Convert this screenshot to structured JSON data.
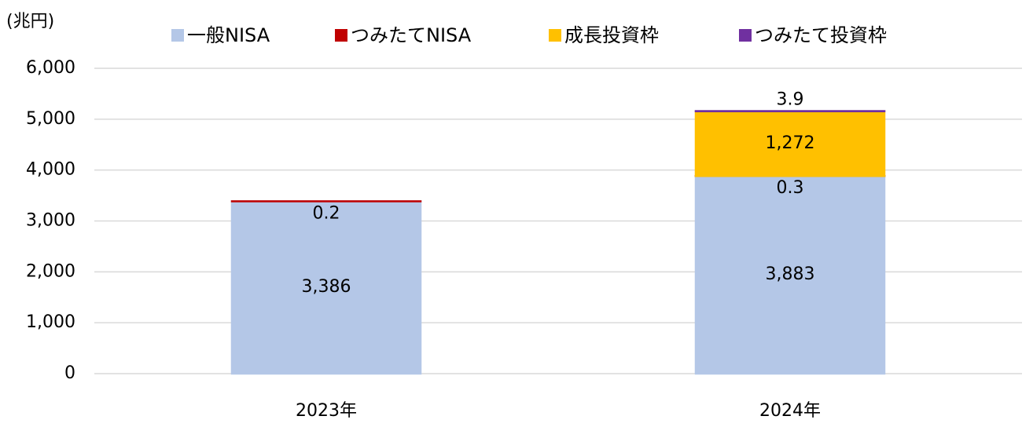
{
  "chart_data": {
    "type": "stacked_bar",
    "title": "(兆円)",
    "categories": [
      "2023年",
      "2024年"
    ],
    "series": [
      {
        "name": "一般NISA",
        "color": "#b4c7e7",
        "values": [
          3386,
          3883
        ]
      },
      {
        "name": "つみたてNISA",
        "color": "#c00000",
        "values": [
          0.2,
          0.3
        ]
      },
      {
        "name": "成長投資枠",
        "color": "#ffc000",
        "values": [
          null,
          1272
        ]
      },
      {
        "name": "つみたて投資枠",
        "color": "#7030a0",
        "values": [
          null,
          3.9
        ]
      }
    ],
    "ylim": [
      0,
      6000
    ],
    "yticks": [
      0,
      {
        "value": 1000,
        "label": "1,000"
      },
      {
        "value": 2000,
        "label": "2,000"
      },
      {
        "value": 3000,
        "label": "3,000"
      },
      {
        "value": 4000,
        "label": "4,000"
      },
      {
        "value": 5000,
        "label": "5,000"
      },
      {
        "value": 6000,
        "label": "6,000"
      }
    ],
    "value_labels": [
      [
        "3,386",
        "3,883"
      ],
      [
        "0.2",
        "0.3"
      ],
      [
        null,
        "1,272"
      ],
      [
        null,
        "3.9"
      ]
    ],
    "grid": true,
    "legend": "top"
  }
}
